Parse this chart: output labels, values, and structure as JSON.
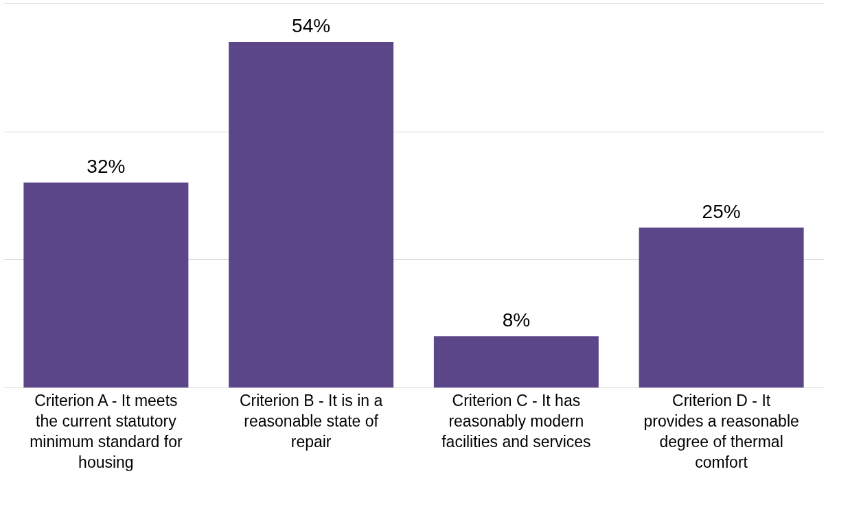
{
  "chart_data": {
    "type": "bar",
    "categories": [
      "Criterion A - It meets the current statutory minimum standard for housing",
      "Criterion B - It is in a reasonable state of repair",
      "Criterion C - It has reasonably modern facilities and services",
      "Criterion D - It provides a reasonable degree of thermal comfort"
    ],
    "values": [
      32,
      54,
      8,
      25
    ],
    "value_labels": [
      "32%",
      "54%",
      "8%",
      "25%"
    ],
    "color": "#5c468a",
    "ylim": [
      0,
      60
    ],
    "yticks": [
      {
        "value": 0,
        "label": null
      },
      {
        "value": 20,
        "label": null
      },
      {
        "value": 40,
        "label": null
      },
      {
        "value": 60,
        "label": null
      }
    ],
    "grid": "y",
    "tick_labels": "x"
  }
}
